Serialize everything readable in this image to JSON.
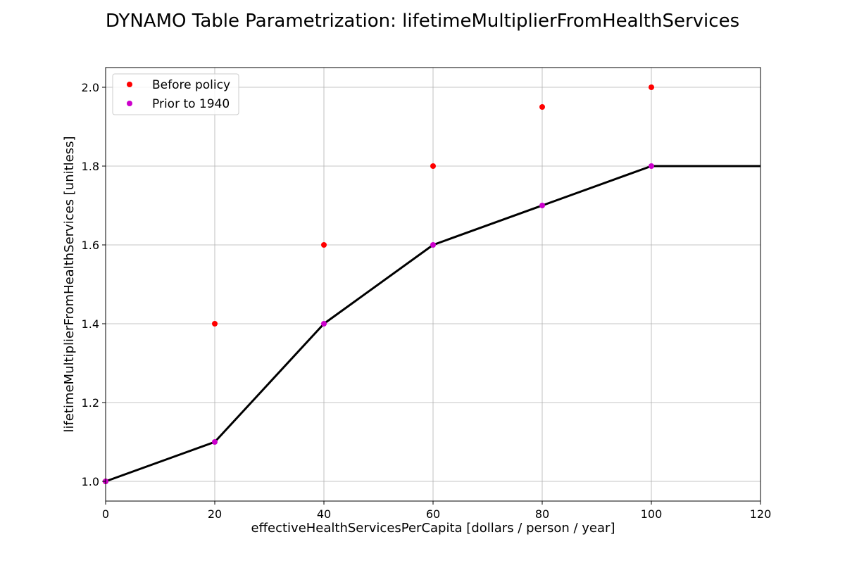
{
  "chart_data": {
    "type": "line",
    "title": "DYNAMO Table Parametrization: lifetimeMultiplierFromHealthServices",
    "xlabel": "effectiveHealthServicesPerCapita [dollars / person / year]",
    "ylabel": "lifetimeMultiplierFromHealthServices [unitless]",
    "xlim": [
      0,
      120
    ],
    "ylim": [
      0.95,
      2.05
    ],
    "x_ticks": [
      "0",
      "20",
      "40",
      "60",
      "80",
      "100",
      "120"
    ],
    "y_ticks": [
      "1.0",
      "1.2",
      "1.4",
      "1.6",
      "1.8",
      "2.0"
    ],
    "grid": true,
    "legend_position": "top-left",
    "line": {
      "color": "#000000",
      "x": [
        0,
        20,
        40,
        60,
        80,
        100,
        120
      ],
      "y": [
        1.0,
        1.1,
        1.4,
        1.6,
        1.7,
        1.8,
        1.8
      ]
    },
    "series": [
      {
        "name": "Before policy",
        "color": "#ff0000",
        "x": [
          0,
          20,
          40,
          60,
          80,
          100
        ],
        "y": [
          1.0,
          1.4,
          1.6,
          1.8,
          1.95,
          2.0
        ]
      },
      {
        "name": "Prior to 1940",
        "color": "#cc00cc",
        "x": [
          0,
          20,
          40,
          60,
          80,
          100
        ],
        "y": [
          1.0,
          1.1,
          1.4,
          1.6,
          1.7,
          1.8
        ]
      }
    ]
  }
}
